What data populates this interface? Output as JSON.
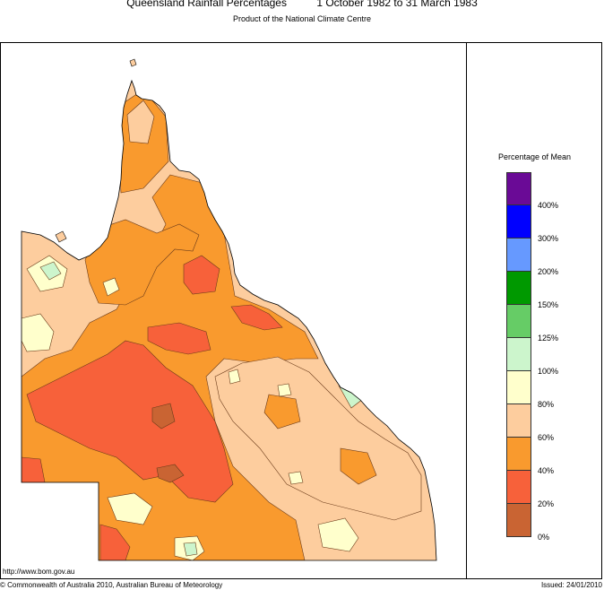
{
  "header": {
    "title": "Queensland Rainfall Percentages",
    "period": "1 October 1982 to 31 March 1983",
    "subtitle": "Product of the National Climate Centre"
  },
  "legend": {
    "title": "Percentage of Mean",
    "classes": [
      {
        "color": "#6a0a96"
      },
      {
        "color": "#0000ff"
      },
      {
        "color": "#6699ff"
      },
      {
        "color": "#009900"
      },
      {
        "color": "#66cc66"
      },
      {
        "color": "#ccf5cc"
      },
      {
        "color": "#ffffcc"
      },
      {
        "color": "#fdcd9e"
      },
      {
        "color": "#f99a2e"
      },
      {
        "color": "#f7613a"
      },
      {
        "color": "#c96433"
      }
    ],
    "ticks": [
      "400%",
      "300%",
      "200%",
      "150%",
      "125%",
      "100%",
      "80%",
      "60%",
      "40%",
      "20%",
      "0%"
    ]
  },
  "footer": {
    "url": "http://www.bom.gov.au",
    "copyright": "© Commonwealth of Australia 2010, Australian Bureau of Meteorology",
    "issued": "Issued: 24/01/2010"
  }
}
